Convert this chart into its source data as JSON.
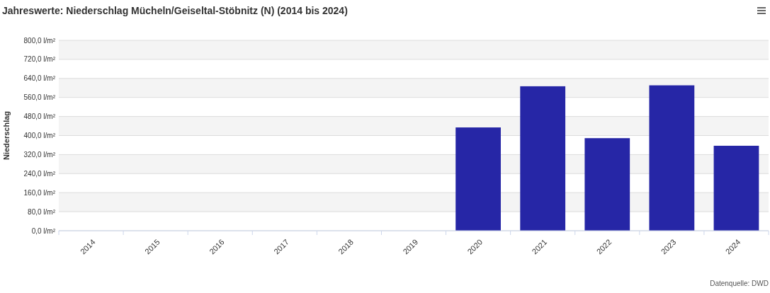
{
  "chart_data": {
    "type": "bar",
    "title": "Jahreswerte: Niederschlag Mücheln/Geiseltal-Stöbnitz (N) (2014 bis 2024)",
    "ylabel": "Niederschlag",
    "categories": [
      "2014",
      "2015",
      "2016",
      "2017",
      "2018",
      "2019",
      "2020",
      "2021",
      "2022",
      "2023",
      "2024"
    ],
    "values": [
      null,
      null,
      null,
      null,
      null,
      null,
      434,
      607,
      389,
      611,
      357
    ],
    "color": "#2626a6",
    "ylim": [
      0,
      800
    ],
    "yticks": [
      {
        "value": 0,
        "label": "0,0 l/m²"
      },
      {
        "value": 80,
        "label": "80,0 l/m²"
      },
      {
        "value": 160,
        "label": "160,0 l/m²"
      },
      {
        "value": 240,
        "label": "240,0 l/m²"
      },
      {
        "value": 320,
        "label": "320,0 l/m²"
      },
      {
        "value": 400,
        "label": "400,0 l/m²"
      },
      {
        "value": 480,
        "label": "480,0 l/m²"
      },
      {
        "value": 560,
        "label": "560,0 l/m²"
      },
      {
        "value": 640,
        "label": "640,0 l/m²"
      },
      {
        "value": 720,
        "label": "720,0 l/m²"
      },
      {
        "value": 800,
        "label": "800,0 l/m²"
      }
    ],
    "grid": "y",
    "annotations": [
      "Datenquelle: DWD"
    ]
  }
}
